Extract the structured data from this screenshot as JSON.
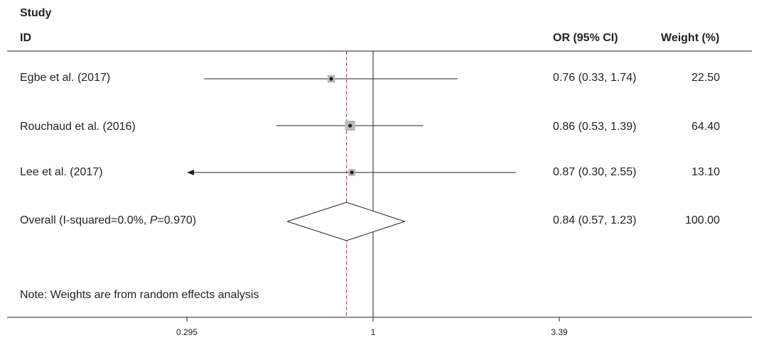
{
  "header": {
    "study_label": "Study",
    "id_label": "ID",
    "or_label": "OR (95% CI)",
    "weight_label": "Weight (%)"
  },
  "note": "Note: Weights are from random effects analysis",
  "chart_data": {
    "type": "forest",
    "scale": "log",
    "xlim": [
      0.295,
      3.39
    ],
    "xticks": [
      "0.295",
      "1",
      "3.39"
    ],
    "null_line": 1,
    "overall_reference_line": 0.84,
    "studies": [
      {
        "label": "Egbe et al. (2017)",
        "or": 0.76,
        "lo": 0.33,
        "hi": 1.74,
        "ci_text": "0.76 (0.33, 1.74)",
        "weight": "22.50",
        "arrow_left": false
      },
      {
        "label": "Rouchaud et al. (2016)",
        "or": 0.86,
        "lo": 0.53,
        "hi": 1.39,
        "ci_text": "0.86 (0.53, 1.39)",
        "weight": "64.40",
        "arrow_left": false
      },
      {
        "label": "Lee et al. (2017)",
        "or": 0.87,
        "lo": 0.3,
        "hi": 2.55,
        "ci_text": "0.87 (0.30, 2.55)",
        "weight": "13.10",
        "arrow_left": true
      }
    ],
    "overall": {
      "label_prefix": "Overall (I-squared=0.0%, ",
      "label_p": "P",
      "label_suffix": "=0.970)",
      "or": 0.84,
      "lo": 0.57,
      "hi": 1.23,
      "ci_text": "0.84 (0.57, 1.23)",
      "weight": "100.00"
    },
    "colors": {
      "ref_line": "#e8253a",
      "axis": "#222222",
      "box": "#b8b8b8",
      "point": "#222222"
    }
  }
}
